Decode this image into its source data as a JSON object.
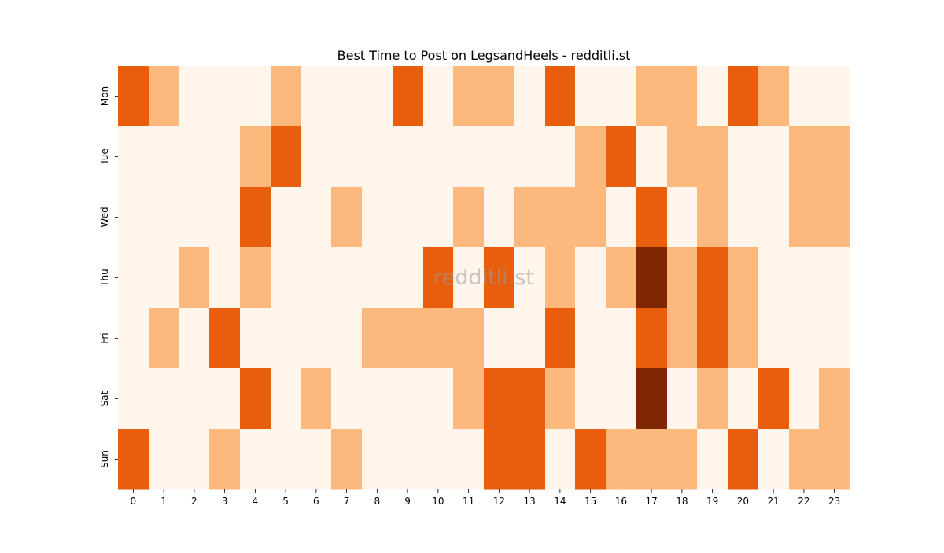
{
  "chart_data": {
    "type": "heatmap",
    "title": "Best Time to Post on LegsandHeels - redditli.st",
    "xlabel": "",
    "ylabel": "",
    "x": [
      "0",
      "1",
      "2",
      "3",
      "4",
      "5",
      "6",
      "7",
      "8",
      "9",
      "10",
      "11",
      "12",
      "13",
      "14",
      "15",
      "16",
      "17",
      "18",
      "19",
      "20",
      "21",
      "22",
      "23"
    ],
    "y": [
      "Mon",
      "Tue",
      "Wed",
      "Thu",
      "Fri",
      "Sat",
      "Sun"
    ],
    "values": [
      [
        2,
        1,
        0,
        0,
        0,
        1,
        0,
        0,
        0,
        2,
        0,
        1,
        1,
        0,
        2,
        0,
        0,
        1,
        1,
        0,
        2,
        1,
        0,
        0
      ],
      [
        0,
        0,
        0,
        0,
        1,
        2,
        0,
        0,
        0,
        0,
        0,
        0,
        0,
        0,
        0,
        1,
        2,
        0,
        1,
        1,
        0,
        0,
        1,
        1
      ],
      [
        0,
        0,
        0,
        0,
        2,
        0,
        0,
        1,
        0,
        0,
        0,
        1,
        0,
        1,
        1,
        1,
        0,
        2,
        0,
        1,
        0,
        0,
        1,
        1
      ],
      [
        0,
        0,
        1,
        0,
        1,
        0,
        0,
        0,
        0,
        0,
        2,
        0,
        2,
        0,
        1,
        0,
        1,
        3,
        1,
        2,
        1,
        0,
        0,
        0
      ],
      [
        0,
        1,
        0,
        2,
        0,
        0,
        0,
        0,
        1,
        1,
        1,
        1,
        0,
        0,
        2,
        0,
        0,
        2,
        1,
        2,
        1,
        0,
        0,
        0
      ],
      [
        0,
        0,
        0,
        0,
        2,
        0,
        1,
        0,
        0,
        0,
        0,
        1,
        2,
        2,
        1,
        0,
        0,
        3,
        0,
        1,
        0,
        2,
        0,
        1
      ],
      [
        2,
        0,
        0,
        1,
        0,
        0,
        0,
        1,
        0,
        0,
        0,
        0,
        2,
        2,
        0,
        2,
        1,
        1,
        1,
        0,
        2,
        0,
        1,
        1
      ]
    ],
    "colorscale": [
      "#fff5eb",
      "#fdb97d",
      "#e95e0d",
      "#7f2704"
    ],
    "colorbar": false,
    "watermark": "redditli.st"
  }
}
